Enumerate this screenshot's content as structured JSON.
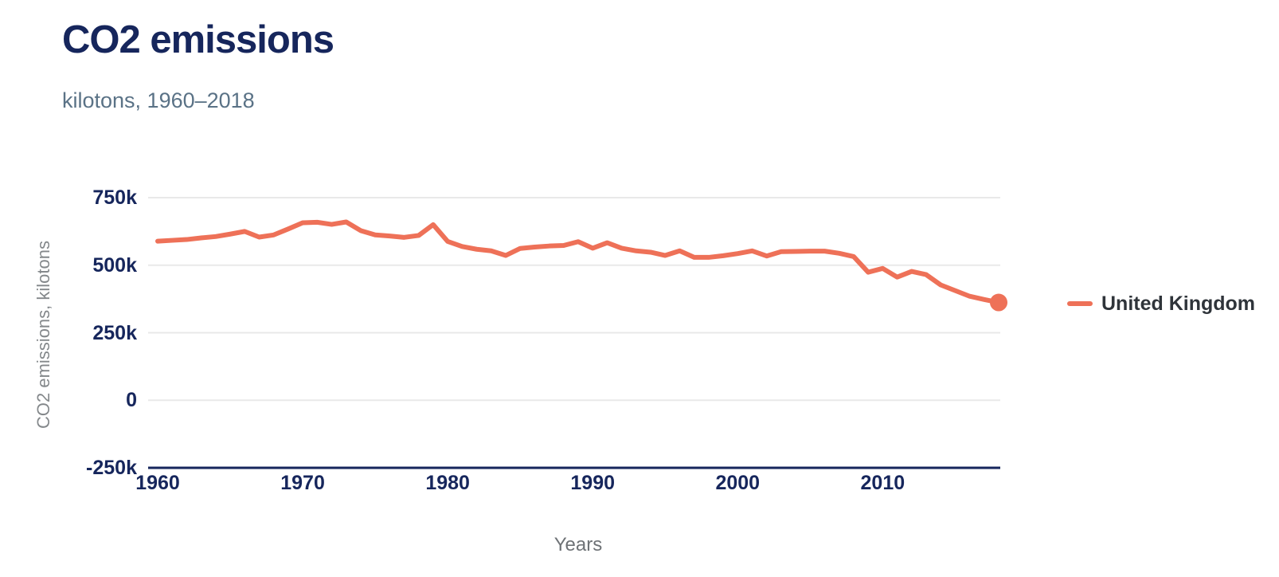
{
  "header": {
    "title": "CO2 emissions",
    "subtitle": "kilotons, 1960–2018"
  },
  "legend": {
    "label": "United Kingdom"
  },
  "colors": {
    "accent": "#EE7158",
    "navy": "#16265C",
    "grid": "#E9E9E9",
    "subtitle_text": "#5A7286",
    "axis_title_text": "#84888B",
    "legend_text": "#2F343A"
  },
  "chart_data": {
    "type": "line",
    "title": "CO2 emissions",
    "subtitle": "kilotons, 1960–2018",
    "xlabel": "Years",
    "ylabel": "CO2 emissions, kilotons",
    "xlim": [
      1960,
      2018
    ],
    "ylim": [
      -250000,
      750000
    ],
    "x_ticks": [
      1960,
      1970,
      1980,
      1990,
      2000,
      2010
    ],
    "y_ticks": [
      "750k",
      "500k",
      "250k",
      "0",
      "-250k"
    ],
    "y_tick_values": [
      750000,
      500000,
      250000,
      0,
      -250000
    ],
    "grid": "horizontal",
    "legend_position": "right",
    "end_marker": true,
    "series": [
      {
        "name": "United Kingdom",
        "color": "#EE7158",
        "x": [
          1960,
          1961,
          1962,
          1963,
          1964,
          1965,
          1966,
          1967,
          1968,
          1969,
          1970,
          1971,
          1972,
          1973,
          1974,
          1975,
          1976,
          1977,
          1978,
          1979,
          1980,
          1981,
          1982,
          1983,
          1984,
          1985,
          1986,
          1987,
          1988,
          1989,
          1990,
          1991,
          1992,
          1993,
          1994,
          1995,
          1996,
          1997,
          1998,
          1999,
          2000,
          2001,
          2002,
          2003,
          2004,
          2005,
          2006,
          2007,
          2008,
          2009,
          2010,
          2011,
          2012,
          2013,
          2014,
          2015,
          2016,
          2017,
          2018
        ],
        "values": [
          589000,
          592000,
          595000,
          601000,
          606000,
          615000,
          625000,
          604000,
          612000,
          634000,
          657000,
          659000,
          651000,
          660000,
          628000,
          612000,
          608000,
          603000,
          610000,
          650000,
          588000,
          569000,
          559000,
          553000,
          536000,
          562000,
          567000,
          571000,
          573000,
          587000,
          563000,
          583000,
          563000,
          553000,
          548000,
          536000,
          553000,
          529000,
          529000,
          535000,
          543000,
          553000,
          534000,
          550000,
          551000,
          552000,
          552000,
          544000,
          532000,
          474000,
          488000,
          456000,
          477000,
          465000,
          427000,
          406000,
          385000,
          373000,
          362000
        ]
      }
    ]
  }
}
